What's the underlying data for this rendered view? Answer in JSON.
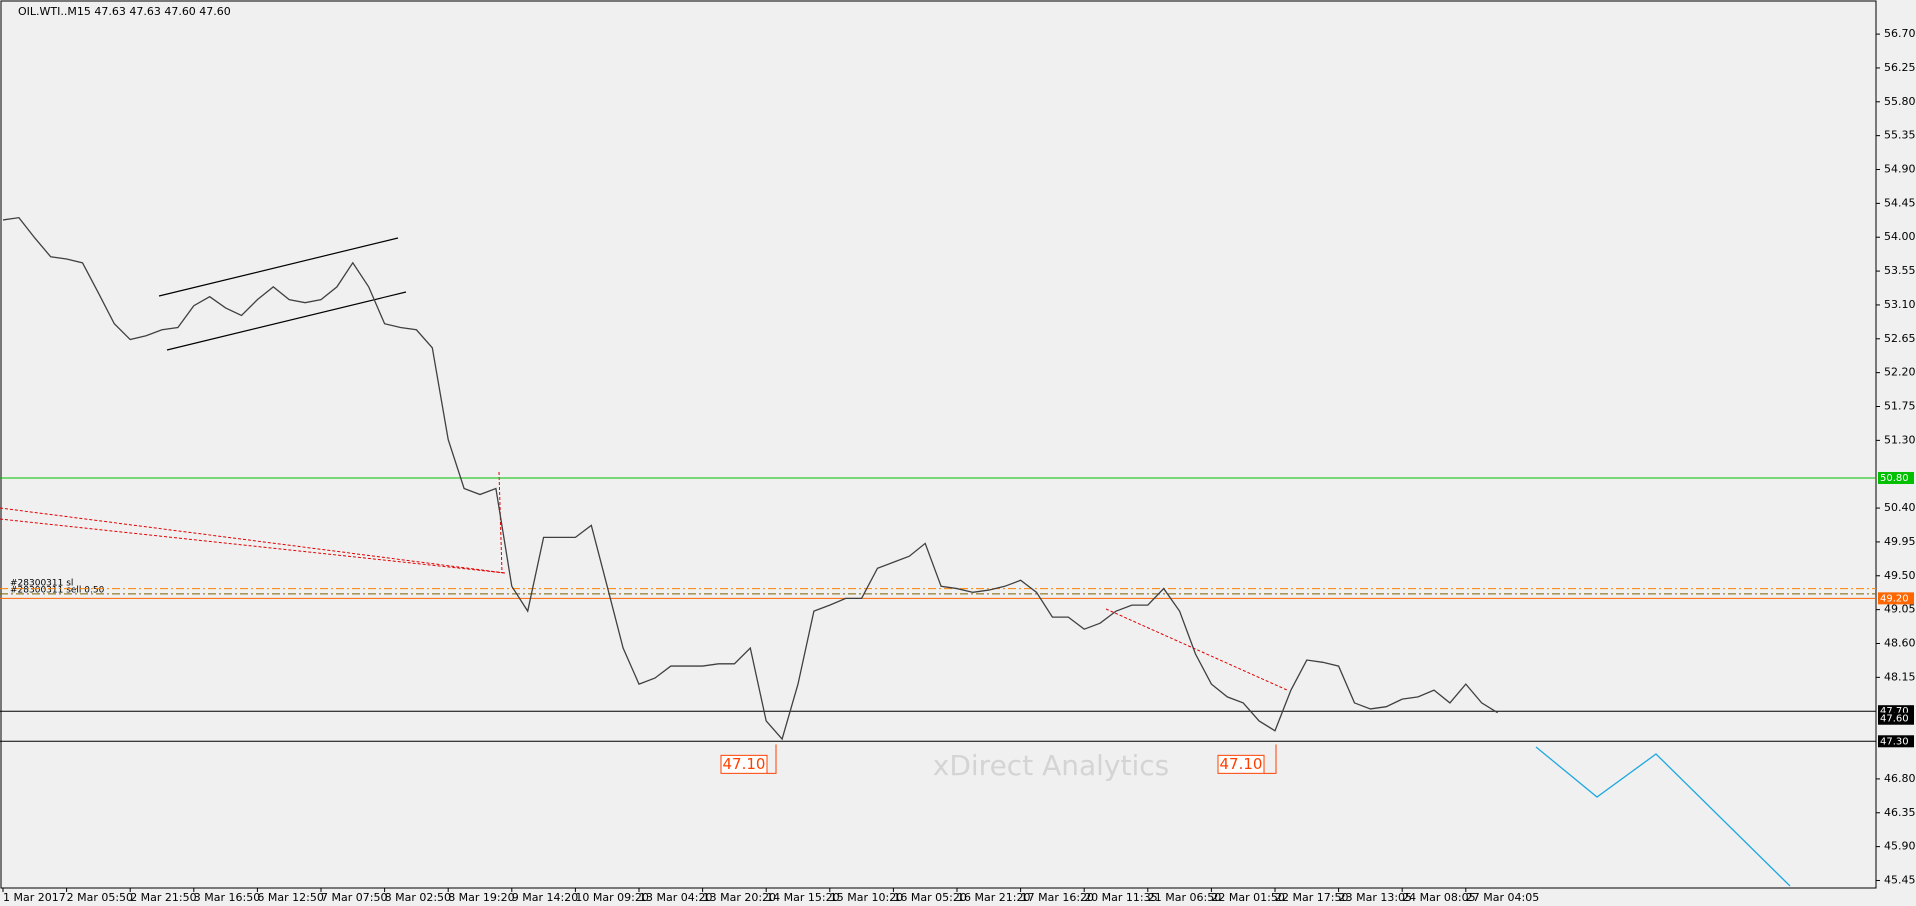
{
  "chart_data": {
    "type": "line",
    "title": "OIL.WTI..M15  47.63 47.63 47.60 47.60",
    "watermark": "xDirect Analytics",
    "order_texts": [
      "#28300311 sl",
      "#28300311 sell 0.50"
    ],
    "categories": [
      "1 Mar 2017",
      null,
      null,
      null,
      "2 Mar 05:50",
      null,
      null,
      null,
      "2 Mar 21:50",
      null,
      null,
      null,
      "3 Mar 16:50",
      null,
      null,
      null,
      "6 Mar 12:50",
      null,
      null,
      null,
      "7 Mar 07:50",
      null,
      null,
      null,
      "8 Mar 02:50",
      null,
      null,
      null,
      "8 Mar 19:20",
      null,
      null,
      null,
      "9 Mar 14:20",
      null,
      null,
      null,
      "10 Mar 09:20",
      null,
      null,
      null,
      "13 Mar 04:20",
      null,
      null,
      null,
      "13 Mar 20:20",
      null,
      null,
      null,
      "14 Mar 15:20",
      null,
      null,
      null,
      "15 Mar 10:20",
      null,
      null,
      null,
      "16 Mar 05:20",
      null,
      null,
      null,
      "16 Mar 21:20",
      null,
      null,
      null,
      "17 Mar 16:20",
      null,
      null,
      null,
      "20 Mar 11:35",
      null,
      null,
      null,
      "21 Mar 06:50",
      null,
      null,
      null,
      "22 Mar 01:50",
      null,
      null,
      null,
      "22 Mar 17:50",
      null,
      null,
      null,
      "23 Mar 13:05",
      null,
      null,
      null,
      "24 Mar 08:05",
      null,
      null,
      null,
      "27 Mar 04:05",
      null,
      null
    ],
    "series": [
      {
        "name": "OIL.WTI",
        "color": "#404040",
        "values": [
          54.23,
          54.26,
          53.99,
          53.74,
          53.71,
          53.66,
          53.26,
          52.85,
          52.64,
          52.69,
          52.77,
          52.8,
          53.09,
          53.21,
          53.06,
          52.96,
          53.17,
          53.34,
          53.17,
          53.13,
          53.17,
          53.34,
          53.66,
          53.34,
          52.85,
          52.8,
          52.77,
          52.53,
          51.31,
          50.66,
          50.58,
          50.66,
          49.36,
          49.03,
          50.01,
          50.01,
          50.01,
          50.17,
          49.36,
          48.54,
          48.06,
          48.14,
          48.3,
          48.3,
          48.3,
          48.33,
          48.33,
          48.54,
          47.57,
          47.33,
          48.06,
          49.03,
          49.11,
          49.2,
          49.2,
          49.6,
          49.68,
          49.76,
          49.93,
          49.36,
          49.33,
          49.28,
          49.31,
          49.36,
          49.44,
          49.28,
          48.95,
          48.95,
          48.79,
          48.87,
          49.03,
          49.11,
          49.11,
          49.33,
          49.03,
          48.46,
          48.06,
          47.89,
          47.81,
          47.57,
          47.44,
          47.98,
          48.38,
          48.35,
          48.3,
          47.81,
          47.73,
          47.76,
          47.86,
          47.89,
          47.98,
          47.81,
          48.06,
          47.81,
          47.68
        ]
      }
    ],
    "ylim": [
      45.35,
      57.1
    ],
    "yticks": [
      {
        "value": 56.7,
        "label": "56.70"
      },
      {
        "value": 56.25,
        "label": "56.25"
      },
      {
        "value": 55.8,
        "label": "55.80"
      },
      {
        "value": 55.35,
        "label": "55.35"
      },
      {
        "value": 54.9,
        "label": "54.90"
      },
      {
        "value": 54.45,
        "label": "54.45"
      },
      {
        "value": 54.0,
        "label": "54.00"
      },
      {
        "value": 53.55,
        "label": "53.55"
      },
      {
        "value": 53.1,
        "label": "53.10"
      },
      {
        "value": 52.65,
        "label": "52.65"
      },
      {
        "value": 52.2,
        "label": "52.20"
      },
      {
        "value": 51.75,
        "label": "51.75"
      },
      {
        "value": 51.3,
        "label": "51.30"
      },
      {
        "value": 50.4,
        "label": "50.40"
      },
      {
        "value": 49.95,
        "label": "49.95"
      },
      {
        "value": 49.5,
        "label": "49.50"
      },
      {
        "value": 49.05,
        "label": "49.05"
      },
      {
        "value": 48.6,
        "label": "48.60"
      },
      {
        "value": 48.15,
        "label": "48.15"
      },
      {
        "value": 46.8,
        "label": "46.80"
      },
      {
        "value": 46.35,
        "label": "46.35"
      },
      {
        "value": 45.9,
        "label": "45.90"
      },
      {
        "value": 45.45,
        "label": "45.45"
      }
    ],
    "levels": [
      {
        "value": 50.8,
        "label": "50.80",
        "color": "#00c000"
      },
      {
        "value": 49.2,
        "label": "49.20",
        "color": "#ff6600"
      },
      {
        "value": 47.7,
        "label": "47.70",
        "color": "#000000"
      },
      {
        "value": 47.3,
        "label": "47.30",
        "color": "#000000"
      }
    ],
    "current_price": {
      "value": 47.6,
      "label": "47.60"
    },
    "order_levels": [
      49.33,
      49.26
    ],
    "annotations": [
      {
        "value": 47.1,
        "label": "47.10"
      },
      {
        "value": 47.1,
        "label": "47.10"
      }
    ],
    "grid": false
  }
}
